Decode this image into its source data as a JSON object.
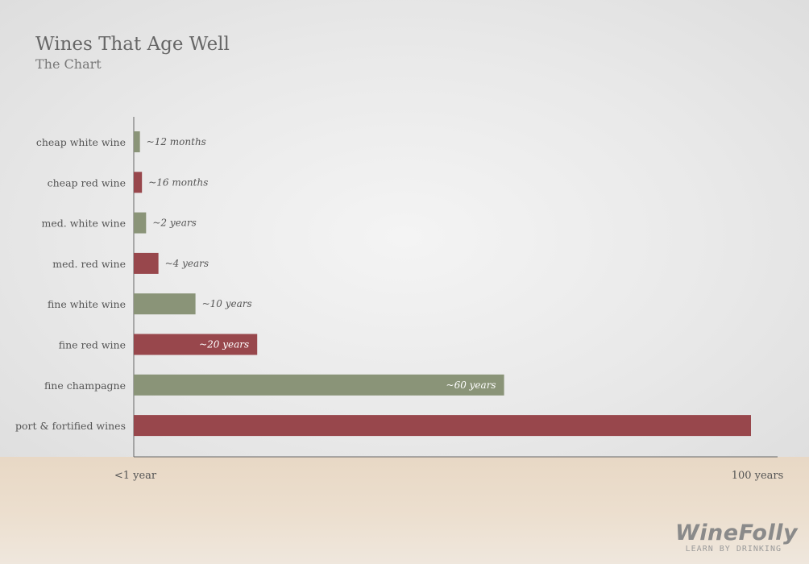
{
  "page": {
    "title": "Wines That Age Well",
    "subtitle": "The Chart",
    "logo": {
      "name": "WineFolly",
      "tagline": "LEARN BY DRINKING"
    }
  },
  "colors": {
    "white_wine": "#8a9478",
    "red_wine": "#98474c",
    "axis": "#666666",
    "label_text": "#555555"
  },
  "chart_data": {
    "type": "bar",
    "orientation": "horizontal",
    "title": "Wines That Age Well",
    "subtitle": "The Chart",
    "x_axis": {
      "tick_labels": [
        "<1 year",
        "100 years"
      ],
      "range_years": [
        0,
        100
      ]
    },
    "categories": [
      "cheap white wine",
      "cheap red wine",
      "med. white wine",
      "med. red wine",
      "fine white wine",
      "fine red wine",
      "fine champagne",
      "port & fortified wines"
    ],
    "values_years": [
      1,
      1.33,
      2,
      4,
      10,
      20,
      60,
      100
    ],
    "value_labels": [
      "~12 months",
      "~16 months",
      "~2 years",
      "~4 years",
      "~10 years",
      "~20 years",
      "~60 years",
      ""
    ],
    "bar_colors": [
      "white_wine",
      "red_wine",
      "white_wine",
      "red_wine",
      "white_wine",
      "red_wine",
      "white_wine",
      "red_wine"
    ],
    "grid": false,
    "legend": "none"
  }
}
